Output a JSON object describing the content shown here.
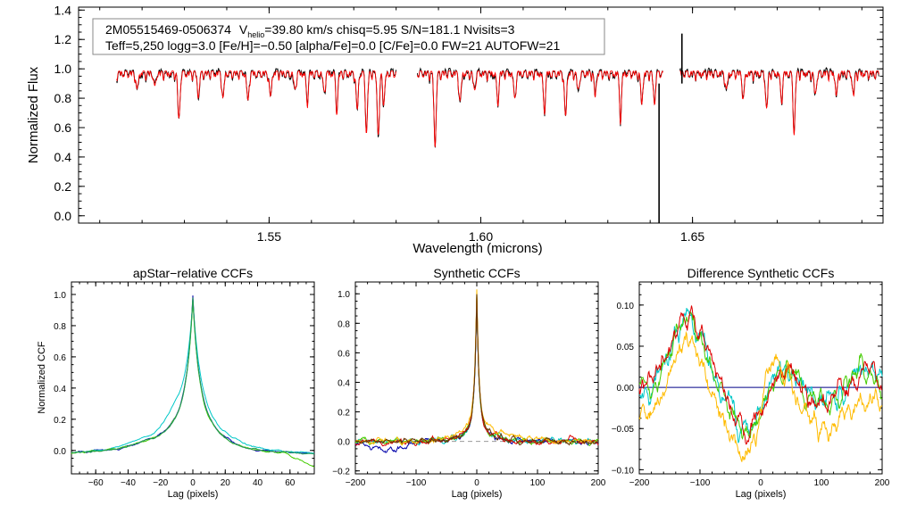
{
  "chart_data": [
    {
      "type": "line",
      "name": "spectrum",
      "xlabel": "Wavelength (microns)",
      "ylabel": "Normalized Flux",
      "xlim": [
        1.505,
        1.695
      ],
      "ylim": [
        -0.05,
        1.42
      ],
      "xticks": [
        "1.55",
        "1.60",
        "1.65"
      ],
      "yticks": [
        "0.0",
        "0.2",
        "0.4",
        "0.6",
        "0.8",
        "1.0",
        "1.2",
        "1.4"
      ],
      "annotation": {
        "star_id": "2M05515469-0506374",
        "v_label": "V",
        "v_sub": "helio",
        "v_rest": "=39.80 km/s  chisq=5.95  S/N=181.1  Nvisits=3",
        "line2": "Teff=5,250 logg=3.0 [Fe/H]=−0.50 [alpha/Fe]=0.0 [C/Fe]=0.0 FW=21 AUTOFW=21"
      },
      "chips": [
        [
          1.514,
          1.58
        ],
        [
          1.585,
          1.643
        ],
        [
          1.647,
          1.694
        ]
      ],
      "series": [
        {
          "name": "observed",
          "color": "#000000"
        },
        {
          "name": "model",
          "color": "#ff0000"
        }
      ],
      "features": [
        {
          "x": 1.5188,
          "depth": 0.12
        },
        {
          "x": 1.523,
          "depth": 0.1
        },
        {
          "x": 1.5287,
          "depth": 0.32
        },
        {
          "x": 1.5333,
          "depth": 0.15
        },
        {
          "x": 1.5391,
          "depth": 0.18
        },
        {
          "x": 1.545,
          "depth": 0.2
        },
        {
          "x": 1.5503,
          "depth": 0.17
        },
        {
          "x": 1.5561,
          "depth": 0.12
        },
        {
          "x": 1.559,
          "depth": 0.2
        },
        {
          "x": 1.563,
          "depth": 0.13
        },
        {
          "x": 1.566,
          "depth": 0.25
        },
        {
          "x": 1.5708,
          "depth": 0.25
        },
        {
          "x": 1.573,
          "depth": 0.4
        },
        {
          "x": 1.5758,
          "depth": 0.42
        },
        {
          "x": 1.5771,
          "depth": 0.2
        },
        {
          "x": 1.5892,
          "depth": 0.48
        },
        {
          "x": 1.5951,
          "depth": 0.2
        },
        {
          "x": 1.5985,
          "depth": 0.12
        },
        {
          "x": 1.604,
          "depth": 0.2
        },
        {
          "x": 1.608,
          "depth": 0.18
        },
        {
          "x": 1.615,
          "depth": 0.25
        },
        {
          "x": 1.62,
          "depth": 0.3
        },
        {
          "x": 1.623,
          "depth": 0.12
        },
        {
          "x": 1.627,
          "depth": 0.15
        },
        {
          "x": 1.633,
          "depth": 0.3
        },
        {
          "x": 1.638,
          "depth": 0.2
        },
        {
          "x": 1.641,
          "depth": 0.2
        },
        {
          "x": 1.658,
          "depth": 0.12
        },
        {
          "x": 1.662,
          "depth": 0.18
        },
        {
          "x": 1.6675,
          "depth": 0.25
        },
        {
          "x": 1.671,
          "depth": 0.18
        },
        {
          "x": 1.674,
          "depth": 0.4
        },
        {
          "x": 1.679,
          "depth": 0.15
        },
        {
          "x": 1.684,
          "depth": 0.15
        },
        {
          "x": 1.688,
          "depth": 0.15
        }
      ],
      "spikes": [
        {
          "x": 1.6421,
          "y": -0.05
        },
        {
          "x": 1.6475,
          "y": 1.24
        }
      ]
    },
    {
      "type": "line",
      "name": "apstar_ccf",
      "title": "apStar−relative CCFs",
      "xlabel": "Lag (pixels)",
      "ylabel": "Normalized CCF",
      "xlim": [
        -75,
        75
      ],
      "ylim": [
        -0.15,
        1.08
      ],
      "xticks": [
        "−60",
        "−40",
        "−20",
        "0",
        "20",
        "40",
        "60"
      ],
      "yticks": [
        "0.0",
        "0.2",
        "0.4",
        "0.6",
        "0.8",
        "1.0"
      ],
      "series": [
        {
          "name": "ccf1",
          "color": "#0000aa",
          "peak": 1.0
        },
        {
          "name": "ccf2",
          "color": "#00c8c8",
          "peak": 0.97
        },
        {
          "name": "ccf3",
          "color": "#44cc00",
          "peak": 0.98
        },
        {
          "name": "ccf4",
          "color": "#229955",
          "peak": 0.99
        }
      ]
    },
    {
      "type": "line",
      "name": "synthetic_ccf",
      "title": "Synthetic CCFs",
      "xlabel": "Lag (pixels)",
      "ylabel": "",
      "xlim": [
        -200,
        200
      ],
      "ylim": [
        -0.22,
        1.08
      ],
      "xticks": [
        "−200",
        "−100",
        "0",
        "100",
        "200"
      ],
      "yticks": [
        "−0.2",
        "0.0",
        "0.2",
        "0.4",
        "0.6",
        "0.8",
        "1.0"
      ],
      "zero_line": true,
      "series": [
        {
          "name": "ccf1",
          "color": "#0000aa"
        },
        {
          "name": "ccf2",
          "color": "#00c8c8"
        },
        {
          "name": "ccf3",
          "color": "#44cc00"
        },
        {
          "name": "ccf4",
          "color": "#dd0000"
        },
        {
          "name": "ccf5",
          "color": "#ffbb00"
        },
        {
          "name": "ccf6",
          "color": "#663300"
        }
      ]
    },
    {
      "type": "line",
      "name": "difference_ccf",
      "title": "Difference Synthetic CCFs",
      "xlabel": "Lag (pixels)",
      "ylabel": "",
      "xlim": [
        -200,
        200
      ],
      "ylim": [
        -0.105,
        0.128
      ],
      "xticks": [
        "−200",
        "−100",
        "0",
        "100",
        "200"
      ],
      "yticks": [
        "−0.10",
        "−0.05",
        "0.00",
        "0.05",
        "0.10"
      ],
      "zero_line": true,
      "series": [
        {
          "name": "diff1",
          "color": "#00c8c8"
        },
        {
          "name": "diff2",
          "color": "#44cc00"
        },
        {
          "name": "diff3",
          "color": "#dd0000"
        },
        {
          "name": "diff4",
          "color": "#ffbb00"
        },
        {
          "name": "diff5",
          "color": "#000088"
        }
      ]
    }
  ]
}
